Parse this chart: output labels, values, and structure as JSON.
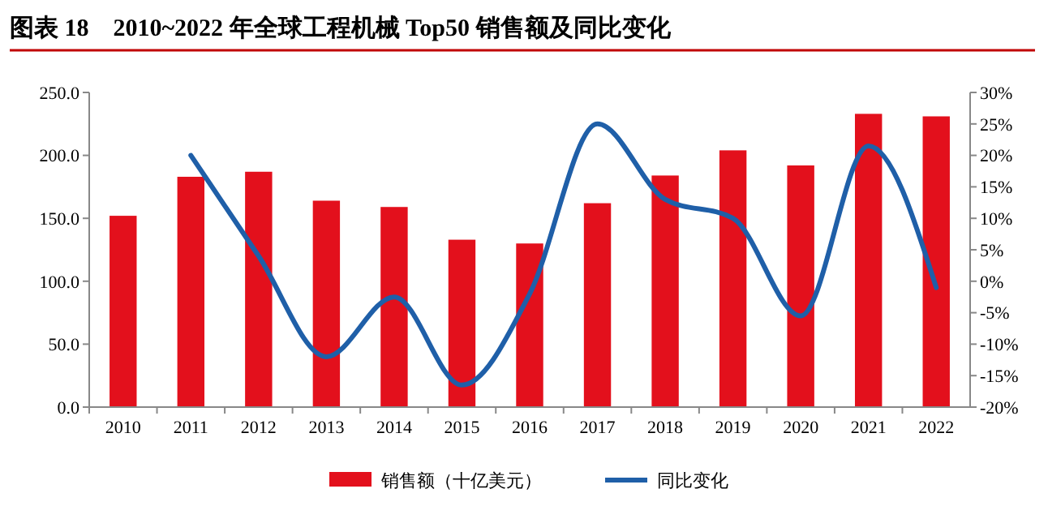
{
  "chart_data": {
    "type": "bar",
    "title": "图表 18    2010~2022 年全球工程机械 Top50 销售额及同比变化",
    "categories": [
      "2010",
      "2011",
      "2012",
      "2013",
      "2014",
      "2015",
      "2016",
      "2017",
      "2018",
      "2019",
      "2020",
      "2021",
      "2022"
    ],
    "series": [
      {
        "name": "销售额（十亿美元）",
        "color": "#e3101c",
        "values": [
          152,
          183,
          187,
          164,
          159,
          133,
          130,
          162,
          184,
          204,
          192,
          233,
          231
        ]
      },
      {
        "name": "同比变化",
        "type": "line",
        "axis": "y2",
        "color": "#1f5fa8",
        "values": [
          null,
          20,
          4,
          -12,
          -2.5,
          -16.5,
          -2,
          25,
          13,
          10,
          -5.5,
          21.5,
          -1
        ]
      }
    ],
    "ylim": [
      0,
      250
    ],
    "yticks": [
      {
        "value": 0,
        "label": "0.0"
      },
      {
        "value": 50,
        "label": "50.0"
      },
      {
        "value": 100,
        "label": "100.0"
      },
      {
        "value": 150,
        "label": "150.0"
      },
      {
        "value": 200,
        "label": "200.0"
      },
      {
        "value": 250,
        "label": "250.0"
      }
    ],
    "y2lim": [
      -20,
      30
    ],
    "y2ticks": [
      {
        "value": -20,
        "label": "-20%"
      },
      {
        "value": -15,
        "label": "-15%"
      },
      {
        "value": -10,
        "label": "-10%"
      },
      {
        "value": -5,
        "label": "-5%"
      },
      {
        "value": 0,
        "label": "0%"
      },
      {
        "value": 5,
        "label": "5%"
      },
      {
        "value": 10,
        "label": "10%"
      },
      {
        "value": 15,
        "label": "15%"
      },
      {
        "value": 20,
        "label": "20%"
      },
      {
        "value": 25,
        "label": "25%"
      },
      {
        "value": 30,
        "label": "30%"
      }
    ],
    "grid": false,
    "legend": "bottom",
    "marker": "none"
  }
}
